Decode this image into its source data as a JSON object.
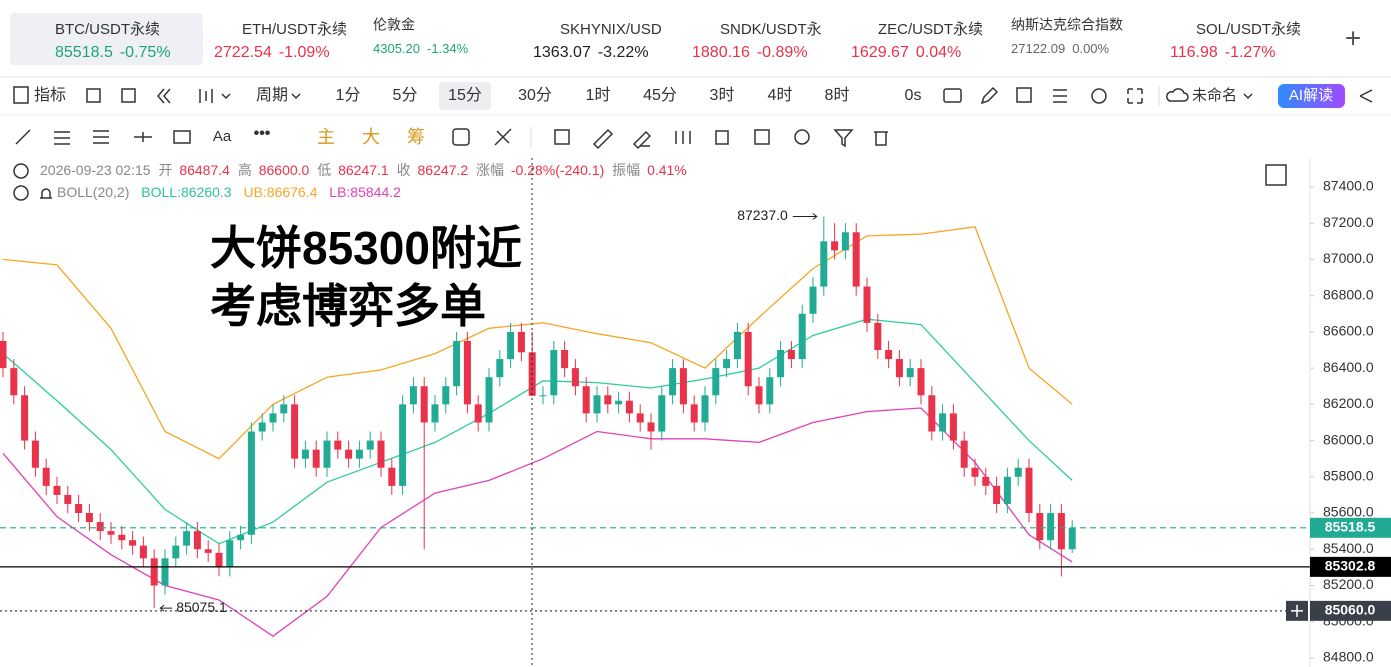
{
  "tabs": [
    {
      "symbol": "BTC/USDT永续",
      "price": "85518.5",
      "change": "-0.75%",
      "color": "#1fa37a"
    },
    {
      "symbol": "ETH/USDT永续",
      "price": "2722.54",
      "change": "-1.09%",
      "color": "#e8334a"
    },
    {
      "symbol": "伦敦金",
      "price": "4305.20",
      "change": "-1.34%",
      "color": "#1fa37a"
    },
    {
      "symbol": "SKHYNIX/USD",
      "price": "1363.07",
      "change": "-3.22%",
      "color": "#222222"
    },
    {
      "symbol": "SNDK/USDT永",
      "price": "1880.16",
      "change": "-0.89%",
      "color": "#e8334a"
    },
    {
      "symbol": "ZEC/USDT永续",
      "price": "1629.67",
      "change": "0.04%",
      "color": "#e8334a"
    },
    {
      "symbol": "纳斯达克综合指数",
      "price": "27122.09",
      "change": "0.00%",
      "color": "#666666"
    },
    {
      "symbol": "SOL/USDT永续",
      "price": "116.98",
      "change": "-1.27%",
      "color": "#e8334a"
    }
  ],
  "toolbar": {
    "indicator": "指标",
    "period": "周期",
    "intervals": [
      "1分",
      "5分",
      "15分",
      "30分",
      "1时",
      "45分",
      "3时",
      "4时",
      "8时"
    ],
    "countdown": "0s",
    "layout_name": "未命名",
    "ai": "AI解读"
  },
  "drawing_tools": {
    "text_tool": "Aa",
    "modes": [
      "主",
      "大",
      "筹"
    ]
  },
  "info": {
    "time": "2026-09-23 02:15",
    "open_label": "开",
    "open": "86487.4",
    "high_label": "高",
    "high": "86600.0",
    "low_label": "低",
    "low": "86247.1",
    "close_label": "收",
    "close": "86247.2",
    "change_label": "涨幅",
    "change": "-0.28%(-240.1)",
    "amplitude_label": "振幅",
    "amplitude": "0.41%"
  },
  "indicator": {
    "name": "BOLL(20,2)",
    "mid": "BOLL:86260.3",
    "upper": "UB:86676.4",
    "lower": "LB:85844.2"
  },
  "overlay_text": [
    "大饼85300附近",
    "考虑博弈多单"
  ],
  "chart_data": {
    "type": "candlestick",
    "up_color": "#22ab94",
    "down_color": "#e8334a",
    "candles": {
      "open": [
        86550,
        86400,
        86250,
        86000,
        85850,
        85750,
        85700,
        85650,
        85600,
        85550,
        85500,
        85480,
        85450,
        85420,
        85350,
        85200,
        85350,
        85420,
        85500,
        85400,
        85380,
        85300,
        85450,
        85480,
        86050,
        86100,
        86150,
        86200,
        85900,
        85950,
        85850,
        86000,
        85950,
        85900,
        85950,
        86000,
        85850,
        85750,
        86200,
        86300,
        86100,
        86200,
        86300,
        86550,
        86200,
        86100,
        86350,
        86450,
        86600,
        86487.4,
        86247.2,
        86250,
        86500,
        86400,
        86300,
        86150,
        86250,
        86200,
        86220,
        86150,
        86100,
        86050,
        86250,
        86400,
        86200,
        86100,
        86250,
        86400,
        86450,
        86600,
        86300,
        86200,
        86350,
        86500,
        86450,
        86700,
        86850,
        87100,
        87050,
        87150,
        86850,
        86650,
        86500,
        86450,
        86350,
        86400,
        86250,
        86050,
        86150,
        86000,
        85850,
        85800,
        85750,
        85650,
        85800,
        85850,
        85600,
        85450,
        85600,
        85400
      ],
      "high": [
        86600,
        86450,
        86300,
        86050,
        85900,
        85800,
        85750,
        85700,
        85650,
        85600,
        85550,
        85530,
        85500,
        85470,
        85400,
        85400,
        85470,
        85550,
        85550,
        85450,
        85430,
        85500,
        85530,
        86100,
        86150,
        86200,
        86250,
        86250,
        86000,
        86000,
        86050,
        86050,
        86000,
        86000,
        86050,
        86050,
        85900,
        86250,
        86350,
        86350,
        86250,
        86350,
        86600,
        86600,
        86250,
        86400,
        86500,
        86650,
        86650,
        86600,
        86300,
        86550,
        86550,
        86450,
        86350,
        86300,
        86300,
        86270,
        86270,
        86200,
        86150,
        86300,
        86450,
        86450,
        86250,
        86300,
        86450,
        86500,
        86650,
        86650,
        86350,
        86400,
        86550,
        86550,
        86750,
        86900,
        87237,
        87200,
        87200,
        87200,
        86900,
        86700,
        86550,
        86500,
        86450,
        86450,
        86300,
        86200,
        86200,
        86050,
        85900,
        85850,
        85800,
        85850,
        85900,
        85900,
        85650,
        85650,
        85650,
        85560
      ],
      "low": [
        86350,
        86200,
        85950,
        85800,
        85700,
        85650,
        85600,
        85550,
        85500,
        85450,
        85430,
        85400,
        85370,
        85300,
        85075.1,
        85150,
        85300,
        85370,
        85350,
        85330,
        85250,
        85250,
        85400,
        85430,
        86000,
        86050,
        86100,
        85850,
        85850,
        85800,
        85800,
        85900,
        85850,
        85850,
        85900,
        85800,
        85700,
        85700,
        86150,
        85400,
        86050,
        86150,
        86250,
        86150,
        86050,
        86050,
        86300,
        86400,
        86437.4,
        86247.1,
        86200,
        86200,
        86350,
        86250,
        86100,
        86100,
        86150,
        86150,
        86100,
        86050,
        85950,
        86000,
        86200,
        86150,
        86050,
        86050,
        86200,
        86350,
        86400,
        86250,
        86150,
        86150,
        86300,
        86400,
        86400,
        86650,
        86800,
        87000,
        87000,
        86800,
        86600,
        86450,
        86400,
        86300,
        86300,
        86200,
        86000,
        86000,
        85950,
        85800,
        85750,
        85700,
        85600,
        85600,
        85750,
        85550,
        85400,
        85400,
        85250,
        85380
      ],
      "close": [
        86400,
        86250,
        86000,
        85850,
        85750,
        85700,
        85650,
        85600,
        85550,
        85500,
        85480,
        85450,
        85420,
        85350,
        85200,
        85350,
        85420,
        85500,
        85400,
        85380,
        85300,
        85450,
        85480,
        86050,
        86100,
        86150,
        86200,
        85900,
        85950,
        85850,
        86000,
        85950,
        85900,
        85950,
        86000,
        85850,
        85750,
        86200,
        86300,
        86100,
        86200,
        86300,
        86550,
        86200,
        86100,
        86350,
        86450,
        86600,
        86487.4,
        86247.2,
        86250,
        86500,
        86400,
        86300,
        86150,
        86250,
        86200,
        86220,
        86150,
        86100,
        86050,
        86250,
        86400,
        86200,
        86100,
        86250,
        86400,
        86450,
        86600,
        86300,
        86200,
        86350,
        86500,
        86450,
        86700,
        86850,
        87100,
        87050,
        87150,
        86850,
        86650,
        86500,
        86450,
        86350,
        86400,
        86250,
        86050,
        86150,
        86000,
        85850,
        85800,
        85750,
        85650,
        85800,
        85850,
        85600,
        85450,
        85600,
        85400,
        85518.5
      ]
    },
    "bands": {
      "x": [
        0,
        5,
        10,
        15,
        20,
        25,
        30,
        35,
        40,
        45,
        50,
        55,
        60,
        65,
        70,
        75,
        80,
        85,
        90,
        95,
        99
      ],
      "series": [
        {
          "color": "#f5a623",
          "values": [
            87000,
            86970,
            86620,
            86050,
            85900,
            86200,
            86350,
            86390,
            86480,
            86620,
            86650,
            86590,
            86540,
            86400,
            86680,
            86950,
            87130,
            87140,
            87180,
            86400,
            86200
          ]
        },
        {
          "color": "#2fcc9f",
          "values": [
            86480,
            86220,
            85950,
            85620,
            85430,
            85550,
            85770,
            85880,
            85990,
            86150,
            86330,
            86320,
            86290,
            86340,
            86400,
            86580,
            86670,
            86640,
            86320,
            86000,
            85780
          ]
        },
        {
          "color": "#e040b8",
          "values": [
            85930,
            85580,
            85370,
            85200,
            85120,
            84920,
            85140,
            85520,
            85710,
            85780,
            85900,
            86050,
            86010,
            86010,
            85990,
            86100,
            86160,
            86180,
            85880,
            85480,
            85330
          ]
        }
      ]
    },
    "ylim": [
      84750,
      87560
    ],
    "yticks": [
      {
        "value": 87400,
        "label": "87400.0"
      },
      {
        "value": 87200,
        "label": "87200.0"
      },
      {
        "value": 87000,
        "label": "87000.0"
      },
      {
        "value": 86800,
        "label": "86800.0"
      },
      {
        "value": 86600,
        "label": "86600.0"
      },
      {
        "value": 86400,
        "label": "86400.0"
      },
      {
        "value": 86200,
        "label": "86200.0"
      },
      {
        "value": 86000,
        "label": "86000.0"
      },
      {
        "value": 85800,
        "label": "85800.0"
      },
      {
        "value": 85600,
        "label": "85600.0"
      },
      {
        "value": 85400,
        "label": "85400.0"
      },
      {
        "value": 85200,
        "label": "85200.0"
      },
      {
        "value": 85000,
        "label": "85000.0"
      },
      {
        "value": 84800,
        "label": "84800.0"
      }
    ],
    "price_lines": [
      {
        "value": 85518.5,
        "color": "#22ab94",
        "style": "dashed"
      },
      {
        "value": 85302.8,
        "color": "#000000",
        "style": "solid"
      },
      {
        "value": 85060,
        "label": "85060.0",
        "color": "#3a3f4a",
        "style": "dotted"
      }
    ],
    "high_marker": {
      "value": 87237,
      "label": "87237.0"
    },
    "low_marker": {
      "value": 85075.1
    }
  }
}
